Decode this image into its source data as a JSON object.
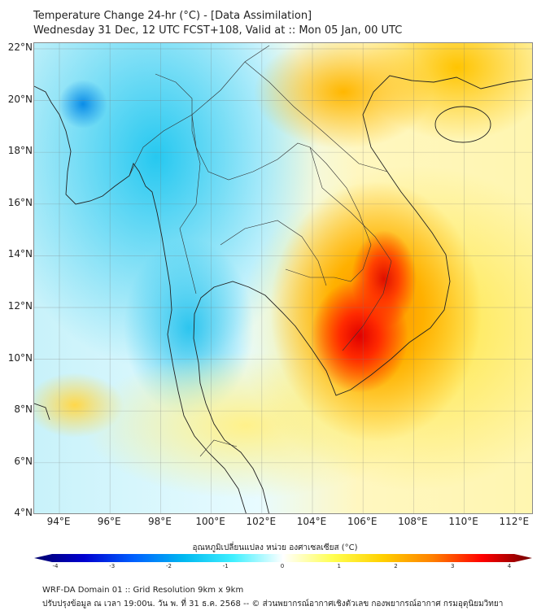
{
  "header": {
    "title": "Temperature Change 24-hr (°C) - [Data Assimilation]",
    "subtitle": "Wednesday 31 Dec, 12 UTC FCST+108, Valid at :: Mon 05 Jan, 00 UTC"
  },
  "map": {
    "lat_labels": [
      "22°N",
      "20°N",
      "18°N",
      "16°N",
      "14°N",
      "12°N",
      "10°N",
      "8°N",
      "6°N",
      "4°N"
    ],
    "lon_labels": [
      "94°E",
      "96°E",
      "98°E",
      "100°E",
      "102°E",
      "104°E",
      "106°E",
      "108°E",
      "110°E",
      "112°E"
    ]
  },
  "colorbar": {
    "label": "อุณหภูมิเปลี่ยนแปลง หน่วย องศาเซลเซียส (°C)",
    "ticks": [
      "-4",
      "-3",
      "-2",
      "-1",
      "0",
      "1",
      "2",
      "3",
      "4"
    ],
    "range": [
      -4,
      4
    ],
    "colors": [
      "#00006a",
      "#0000d0",
      "#0060ff",
      "#00b8f0",
      "#40f0ff",
      "#ffffff",
      "#ffff50",
      "#ffd000",
      "#ff8000",
      "#ff0000",
      "#700000"
    ]
  },
  "footer": {
    "line1": "WRF-DA Domain 01 :: Grid Resolution 9km x 9km",
    "line2": "ปรับปรุงข้อมูล ณ เวลา 19:00น. วัน พ. ที่ 31 ธ.ค. 2568 -- © ส่วนพยากรณ์อากาศเชิงตัวเลข กองพยากรณ์อากาศ กรมอุตุนิยมวิทยา"
  }
}
